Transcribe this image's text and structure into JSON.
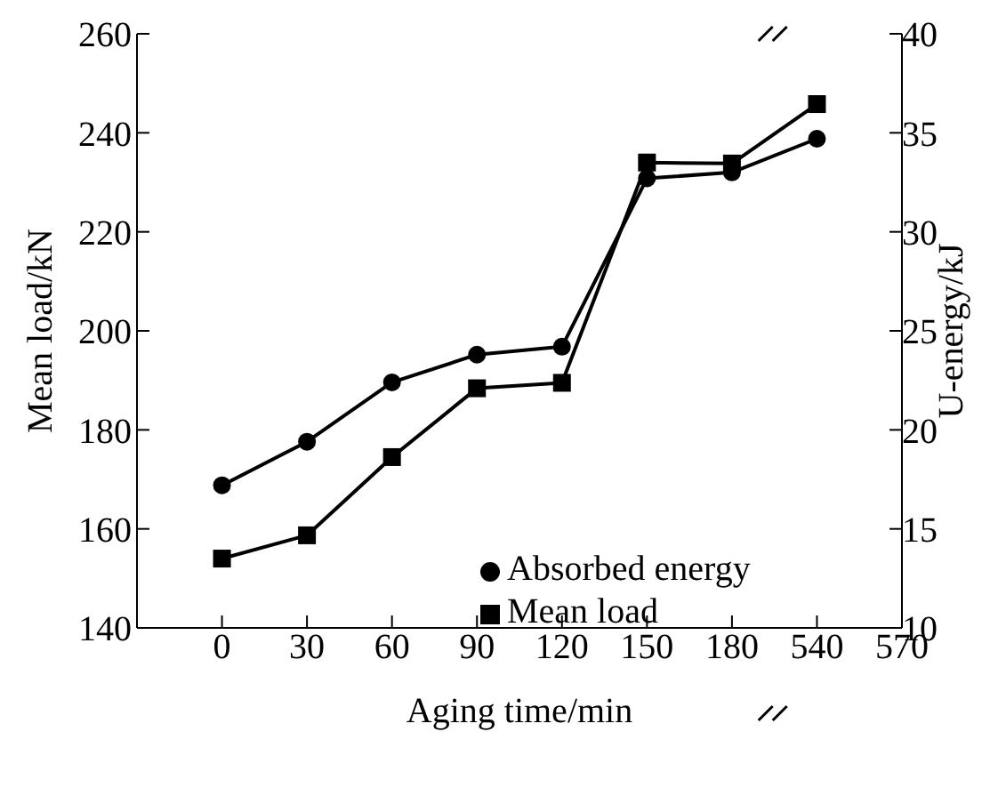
{
  "chart_data": {
    "type": "line",
    "xlabel": "Aging time/min",
    "ylabel": "Mean load/kN",
    "y2label": "U-energy/kJ",
    "categories": [
      "0",
      "30",
      "60",
      "90",
      "120",
      "150",
      "180",
      "540",
      "570"
    ],
    "series": [
      {
        "name": "Mean load",
        "color": "#000000",
        "marker": "square",
        "values": [
          154,
          158.7,
          174.5,
          188.4,
          189.5,
          234,
          233.8,
          245.8,
          null
        ]
      },
      {
        "name": "Absorbed energy",
        "color": "#000000",
        "marker": "circle",
        "axis": "y2",
        "values": [
          17.2,
          19.4,
          22.4,
          23.8,
          24.2,
          32.7,
          33.0,
          34.7,
          null
        ]
      }
    ],
    "ylim": [
      140,
      260
    ],
    "yticks": [
      140,
      160,
      180,
      200,
      220,
      240,
      260
    ],
    "y2lim": [
      10,
      40
    ],
    "y2ticks": [
      10,
      15,
      20,
      25,
      30,
      35,
      40
    ],
    "legend": "bottom right",
    "grid": false
  }
}
